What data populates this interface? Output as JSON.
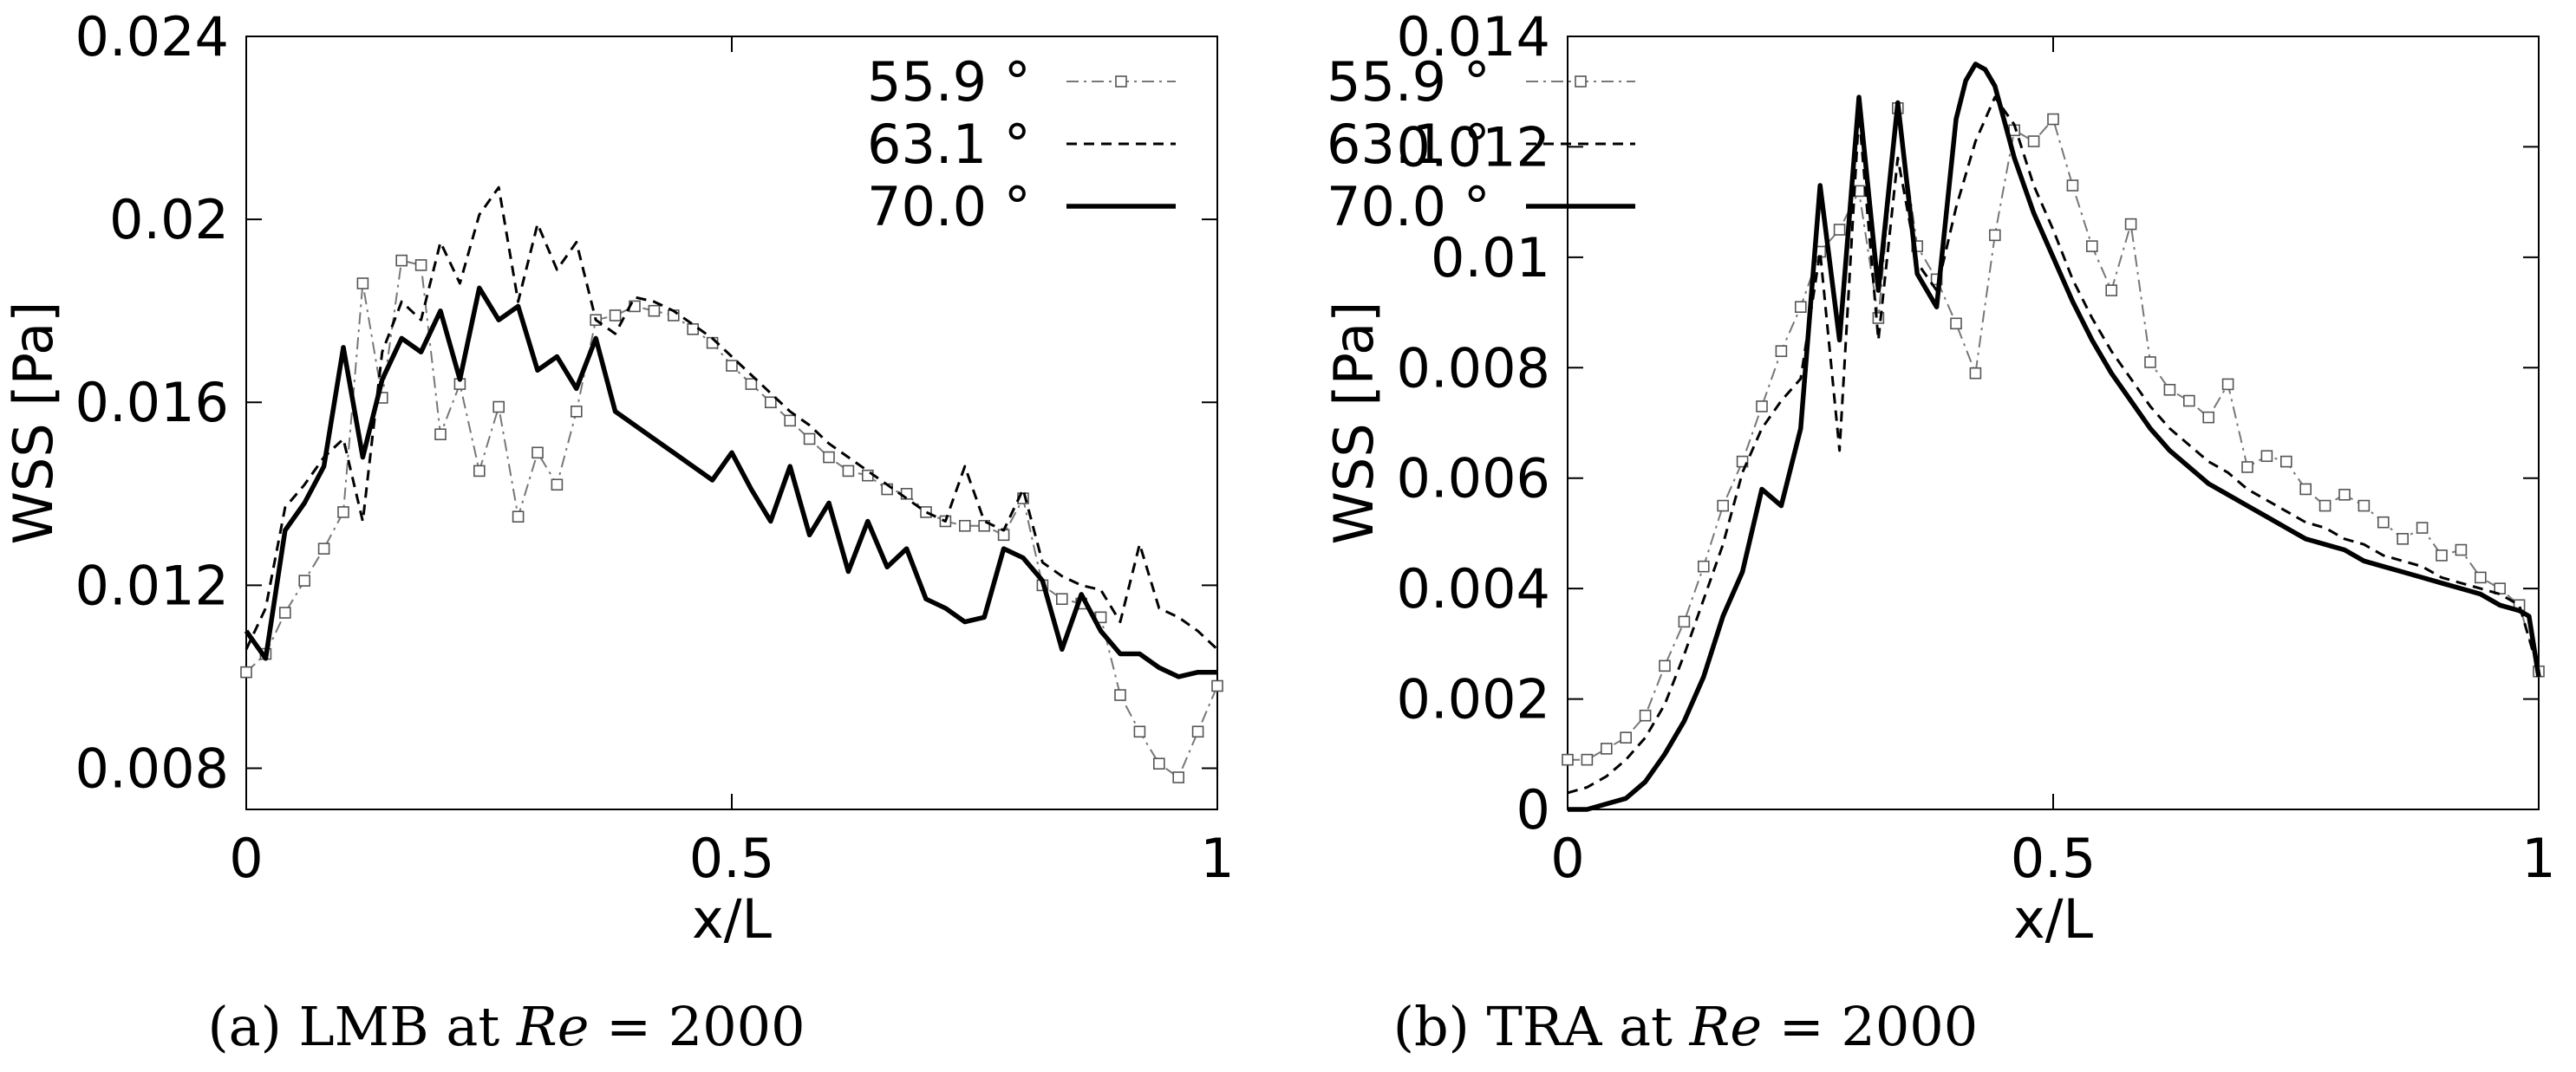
{
  "captions": [
    {
      "prefix": "(a) LMB at ",
      "re": "Re",
      "suffix": " = 2000"
    },
    {
      "prefix": "(b) TRA at ",
      "re": "Re",
      "suffix": " = 2000"
    }
  ],
  "chart_data": [
    {
      "type": "line",
      "xlabel": "x/L",
      "ylabel": "WSS [Pa]",
      "xlim": [
        0,
        1
      ],
      "ylim": [
        0.0071,
        0.024
      ],
      "xticks": [
        0,
        0.5,
        1
      ],
      "xtick_labels": [
        "0",
        "0.5",
        "1"
      ],
      "yticks": [
        0.008,
        0.012,
        0.016,
        0.02,
        0.024
      ],
      "ytick_labels": [
        "0.008",
        "0.012",
        "0.016",
        "0.02",
        "0.024"
      ],
      "legend_position": "top-right",
      "grid": false,
      "series": [
        {
          "name": "55.9 °",
          "style": "dashdot-square",
          "x": [
            0,
            0.02,
            0.04,
            0.06,
            0.08,
            0.1,
            0.12,
            0.14,
            0.16,
            0.18,
            0.2,
            0.22,
            0.24,
            0.26,
            0.28,
            0.3,
            0.32,
            0.34,
            0.36,
            0.38,
            0.4,
            0.42,
            0.44,
            0.46,
            0.48,
            0.5,
            0.52,
            0.54,
            0.56,
            0.58,
            0.6,
            0.62,
            0.64,
            0.66,
            0.68,
            0.7,
            0.72,
            0.74,
            0.76,
            0.78,
            0.8,
            0.82,
            0.84,
            0.86,
            0.88,
            0.9,
            0.92,
            0.94,
            0.96,
            0.98,
            1.0
          ],
          "y": [
            0.0101,
            0.0105,
            0.0114,
            0.0121,
            0.0128,
            0.0136,
            0.0186,
            0.0161,
            0.0191,
            0.019,
            0.0153,
            0.0164,
            0.0145,
            0.0159,
            0.0135,
            0.0149,
            0.0142,
            0.0158,
            0.0178,
            0.0179,
            0.0181,
            0.018,
            0.0179,
            0.0176,
            0.0173,
            0.0168,
            0.0164,
            0.016,
            0.0156,
            0.0152,
            0.0148,
            0.0145,
            0.0144,
            0.0141,
            0.014,
            0.0136,
            0.0134,
            0.0133,
            0.0133,
            0.0131,
            0.0139,
            0.012,
            0.0117,
            0.0116,
            0.0113,
            0.0096,
            0.0088,
            0.0081,
            0.0078,
            0.0088,
            0.0098
          ]
        },
        {
          "name": "63.1 °",
          "style": "dashed",
          "x": [
            0,
            0.02,
            0.04,
            0.06,
            0.08,
            0.1,
            0.12,
            0.14,
            0.16,
            0.18,
            0.2,
            0.22,
            0.24,
            0.26,
            0.28,
            0.3,
            0.32,
            0.34,
            0.36,
            0.38,
            0.4,
            0.42,
            0.44,
            0.46,
            0.48,
            0.5,
            0.52,
            0.54,
            0.56,
            0.58,
            0.6,
            0.62,
            0.64,
            0.66,
            0.68,
            0.7,
            0.72,
            0.74,
            0.76,
            0.78,
            0.8,
            0.82,
            0.84,
            0.86,
            0.88,
            0.9,
            0.92,
            0.94,
            0.96,
            0.98,
            1.0
          ],
          "y": [
            0.0106,
            0.0115,
            0.0137,
            0.0142,
            0.0148,
            0.0152,
            0.0134,
            0.0171,
            0.0182,
            0.0178,
            0.0195,
            0.0186,
            0.0201,
            0.0207,
            0.0182,
            0.0199,
            0.0189,
            0.0195,
            0.0178,
            0.0175,
            0.0183,
            0.0182,
            0.018,
            0.0177,
            0.0174,
            0.017,
            0.0166,
            0.0162,
            0.0158,
            0.0155,
            0.0151,
            0.0148,
            0.0145,
            0.0142,
            0.0139,
            0.0136,
            0.0134,
            0.0146,
            0.0134,
            0.0132,
            0.0141,
            0.0125,
            0.0122,
            0.012,
            0.0119,
            0.0112,
            0.0129,
            0.0115,
            0.0113,
            0.011,
            0.0106
          ]
        },
        {
          "name": "70.0 °",
          "style": "solid-thick",
          "x": [
            0,
            0.02,
            0.04,
            0.06,
            0.08,
            0.1,
            0.12,
            0.14,
            0.16,
            0.18,
            0.2,
            0.22,
            0.24,
            0.26,
            0.28,
            0.3,
            0.32,
            0.34,
            0.36,
            0.38,
            0.4,
            0.42,
            0.44,
            0.46,
            0.48,
            0.5,
            0.52,
            0.54,
            0.56,
            0.58,
            0.6,
            0.62,
            0.64,
            0.66,
            0.68,
            0.7,
            0.72,
            0.74,
            0.76,
            0.78,
            0.8,
            0.82,
            0.84,
            0.86,
            0.88,
            0.9,
            0.92,
            0.94,
            0.96,
            0.98,
            1.0
          ],
          "y": [
            0.011,
            0.0104,
            0.0132,
            0.0138,
            0.0146,
            0.0172,
            0.0148,
            0.0165,
            0.0174,
            0.0171,
            0.018,
            0.0165,
            0.0185,
            0.0178,
            0.0181,
            0.0167,
            0.017,
            0.0163,
            0.0174,
            0.0158,
            0.0155,
            0.0152,
            0.0149,
            0.0146,
            0.0143,
            0.0149,
            0.0141,
            0.0134,
            0.0146,
            0.0131,
            0.0138,
            0.0123,
            0.0134,
            0.0124,
            0.0128,
            0.0117,
            0.0115,
            0.0112,
            0.0113,
            0.0128,
            0.0126,
            0.0121,
            0.0106,
            0.0118,
            0.011,
            0.0105,
            0.0105,
            0.0102,
            0.01,
            0.0101,
            0.0101
          ]
        }
      ]
    },
    {
      "type": "line",
      "xlabel": "x/L",
      "ylabel": "WSS [Pa]",
      "xlim": [
        0,
        1
      ],
      "ylim": [
        0,
        0.014
      ],
      "xticks": [
        0,
        0.5,
        1
      ],
      "xtick_labels": [
        "0",
        "0.5",
        "1"
      ],
      "yticks": [
        0,
        0.002,
        0.004,
        0.006,
        0.008,
        0.01,
        0.012,
        0.014
      ],
      "ytick_labels": [
        "0",
        "0.002",
        "0.004",
        "0.006",
        "0.008",
        "0.01",
        "0.012",
        "0.014"
      ],
      "legend_position": "top-right",
      "grid": false,
      "series": [
        {
          "name": "55.9 °",
          "style": "dashdot-square",
          "x": [
            0,
            0.02,
            0.04,
            0.06,
            0.08,
            0.1,
            0.12,
            0.14,
            0.16,
            0.18,
            0.2,
            0.22,
            0.24,
            0.26,
            0.28,
            0.3,
            0.32,
            0.34,
            0.36,
            0.38,
            0.4,
            0.42,
            0.44,
            0.46,
            0.48,
            0.5,
            0.52,
            0.54,
            0.56,
            0.58,
            0.6,
            0.62,
            0.64,
            0.66,
            0.68,
            0.7,
            0.72,
            0.74,
            0.76,
            0.78,
            0.8,
            0.82,
            0.84,
            0.86,
            0.88,
            0.9,
            0.92,
            0.94,
            0.96,
            0.98,
            1.0
          ],
          "y": [
            0.0009,
            0.0009,
            0.0011,
            0.0013,
            0.0017,
            0.0026,
            0.0034,
            0.0044,
            0.0055,
            0.0063,
            0.0073,
            0.0083,
            0.0091,
            0.0101,
            0.0105,
            0.0112,
            0.0089,
            0.0127,
            0.0102,
            0.0096,
            0.0088,
            0.0079,
            0.0104,
            0.0123,
            0.0121,
            0.0125,
            0.0113,
            0.0102,
            0.0094,
            0.0106,
            0.0081,
            0.0076,
            0.0074,
            0.0071,
            0.0077,
            0.0062,
            0.0064,
            0.0063,
            0.0058,
            0.0055,
            0.0057,
            0.0055,
            0.0052,
            0.0049,
            0.0051,
            0.0046,
            0.0047,
            0.0042,
            0.004,
            0.0037,
            0.0025
          ]
        },
        {
          "name": "63.1 °",
          "style": "dashed",
          "x": [
            0,
            0.02,
            0.04,
            0.06,
            0.08,
            0.1,
            0.12,
            0.14,
            0.16,
            0.18,
            0.2,
            0.22,
            0.24,
            0.26,
            0.28,
            0.3,
            0.32,
            0.34,
            0.36,
            0.38,
            0.4,
            0.42,
            0.44,
            0.46,
            0.48,
            0.5,
            0.52,
            0.54,
            0.56,
            0.58,
            0.6,
            0.62,
            0.64,
            0.66,
            0.68,
            0.7,
            0.72,
            0.74,
            0.76,
            0.78,
            0.8,
            0.82,
            0.84,
            0.86,
            0.88,
            0.9,
            0.92,
            0.94,
            0.96,
            0.98,
            1.0
          ],
          "y": [
            0.0003,
            0.0004,
            0.0006,
            0.0009,
            0.0013,
            0.0019,
            0.0028,
            0.0038,
            0.0048,
            0.0061,
            0.0069,
            0.0074,
            0.0078,
            0.0101,
            0.0065,
            0.0126,
            0.0085,
            0.0118,
            0.0099,
            0.0094,
            0.0109,
            0.0121,
            0.0129,
            0.0124,
            0.0113,
            0.0105,
            0.0096,
            0.0089,
            0.0083,
            0.0078,
            0.0073,
            0.0069,
            0.0066,
            0.0063,
            0.0061,
            0.0058,
            0.0056,
            0.0054,
            0.0052,
            0.0051,
            0.0049,
            0.0048,
            0.0046,
            0.0045,
            0.0044,
            0.0042,
            0.0041,
            0.004,
            0.0039,
            0.0037,
            0.0025
          ]
        },
        {
          "name": "70.0 °",
          "style": "solid-thick",
          "x": [
            0,
            0.02,
            0.04,
            0.06,
            0.08,
            0.1,
            0.12,
            0.14,
            0.16,
            0.18,
            0.2,
            0.22,
            0.24,
            0.26,
            0.28,
            0.3,
            0.32,
            0.34,
            0.36,
            0.38,
            0.4,
            0.41,
            0.42,
            0.43,
            0.44,
            0.46,
            0.48,
            0.5,
            0.52,
            0.54,
            0.56,
            0.58,
            0.6,
            0.62,
            0.64,
            0.66,
            0.68,
            0.7,
            0.72,
            0.74,
            0.76,
            0.78,
            0.8,
            0.82,
            0.84,
            0.86,
            0.88,
            0.9,
            0.92,
            0.94,
            0.96,
            0.98,
            0.99,
            1.0
          ],
          "y": [
            0,
            0,
            0.0001,
            0.0002,
            0.0005,
            0.001,
            0.0016,
            0.0024,
            0.0035,
            0.0043,
            0.0058,
            0.0055,
            0.0069,
            0.0113,
            0.0085,
            0.0129,
            0.0094,
            0.0128,
            0.0097,
            0.0091,
            0.0125,
            0.0132,
            0.0135,
            0.0134,
            0.0131,
            0.0118,
            0.0108,
            0.01,
            0.0092,
            0.0085,
            0.0079,
            0.0074,
            0.0069,
            0.0065,
            0.0062,
            0.0059,
            0.0057,
            0.0055,
            0.0053,
            0.0051,
            0.0049,
            0.0048,
            0.0047,
            0.0045,
            0.0044,
            0.0043,
            0.0042,
            0.0041,
            0.004,
            0.0039,
            0.0037,
            0.0036,
            0.0035,
            0.0024
          ]
        }
      ]
    }
  ]
}
